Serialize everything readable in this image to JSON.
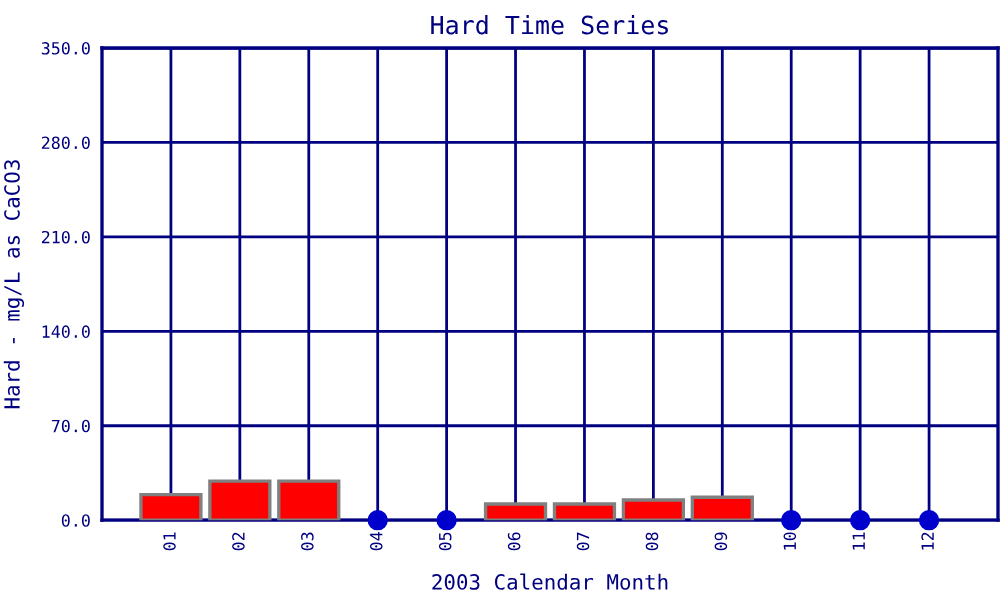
{
  "chart_data": {
    "type": "bar",
    "title": "Hard Time Series",
    "xlabel": "2003 Calendar Month",
    "ylabel": "Hard - mg/L as CaCO3",
    "categories": [
      "01",
      "02",
      "03",
      "04",
      "05",
      "06",
      "07",
      "08",
      "09",
      "10",
      "11",
      "12"
    ],
    "series": [
      {
        "color": "#ff0000",
        "values": [
          19,
          29,
          29,
          null,
          null,
          12,
          12,
          15,
          17,
          null,
          null,
          null
        ]
      },
      {
        "type": "scatter",
        "color": "#0000cc",
        "values": [
          null,
          null,
          null,
          0,
          0,
          null,
          null,
          null,
          null,
          0,
          0,
          0
        ]
      }
    ],
    "ylim": [
      0,
      350
    ],
    "yticks": [
      {
        "value": 0,
        "label": "0.0"
      },
      {
        "value": 70,
        "label": "70.0"
      },
      {
        "value": 140,
        "label": "140.0"
      },
      {
        "value": 210,
        "label": "210.0"
      },
      {
        "value": 280,
        "label": "280.0"
      },
      {
        "value": 350,
        "label": "350.0"
      }
    ],
    "grid": true,
    "marker": "circle"
  }
}
